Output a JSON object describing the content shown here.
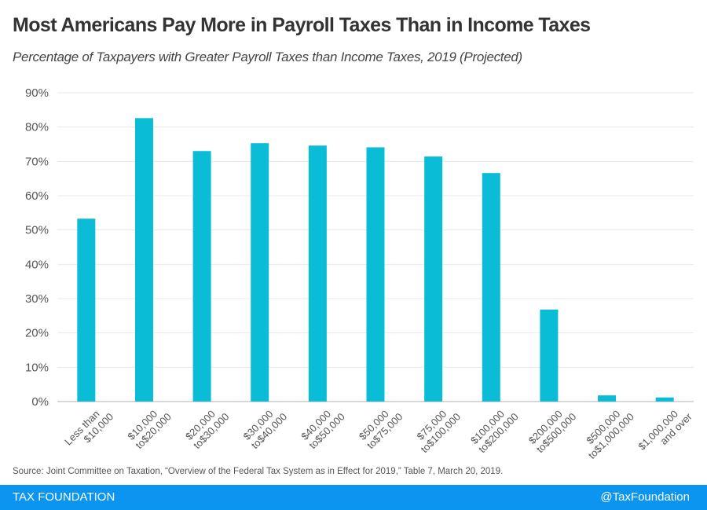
{
  "chart_data": {
    "type": "bar",
    "title": "Most Americans Pay More in Payroll Taxes Than in Income Taxes",
    "subtitle": "Percentage of Taxpayers with Greater Payroll Taxes than Income Taxes, 2019 (Projected)",
    "xlabel": "",
    "ylabel": "",
    "ylim": [
      0,
      90
    ],
    "yticks": [
      0,
      10,
      20,
      30,
      40,
      50,
      60,
      70,
      80,
      90
    ],
    "ytick_labels": [
      "0%",
      "10%",
      "20%",
      "30%",
      "40%",
      "50%",
      "60%",
      "70%",
      "80%",
      "90%"
    ],
    "grid": true,
    "categories": [
      [
        "Less than",
        "$10,000"
      ],
      [
        "$10,000",
        "to$20,000"
      ],
      [
        "$20,000",
        "to$30,000"
      ],
      [
        "$30,000",
        "to$40,000"
      ],
      [
        "$40,000",
        "to$50,000"
      ],
      [
        "$50,000",
        "to$75,000"
      ],
      [
        "$75,000",
        "to$100,000"
      ],
      [
        "$100,000",
        "to$200,000"
      ],
      [
        "$200,000",
        "to$500,000"
      ],
      [
        "$500,000",
        "to$1,000,000"
      ],
      [
        "$1,000,000",
        "and over"
      ]
    ],
    "values": [
      53.3,
      82.6,
      73.0,
      75.3,
      74.6,
      74.1,
      71.4,
      66.6,
      26.8,
      1.8,
      1.2
    ],
    "bar_color": "#0bbcd6",
    "grid_color": "#e8e8e8"
  },
  "source": "Source: Joint Committee on Taxation, “Overview of the Federal Tax System as in Effect for 2019,” Table 7, March 20, 2019.",
  "footer": {
    "brand": "TAX FOUNDATION",
    "handle": "@TaxFoundation",
    "color": "#0b94f0"
  }
}
